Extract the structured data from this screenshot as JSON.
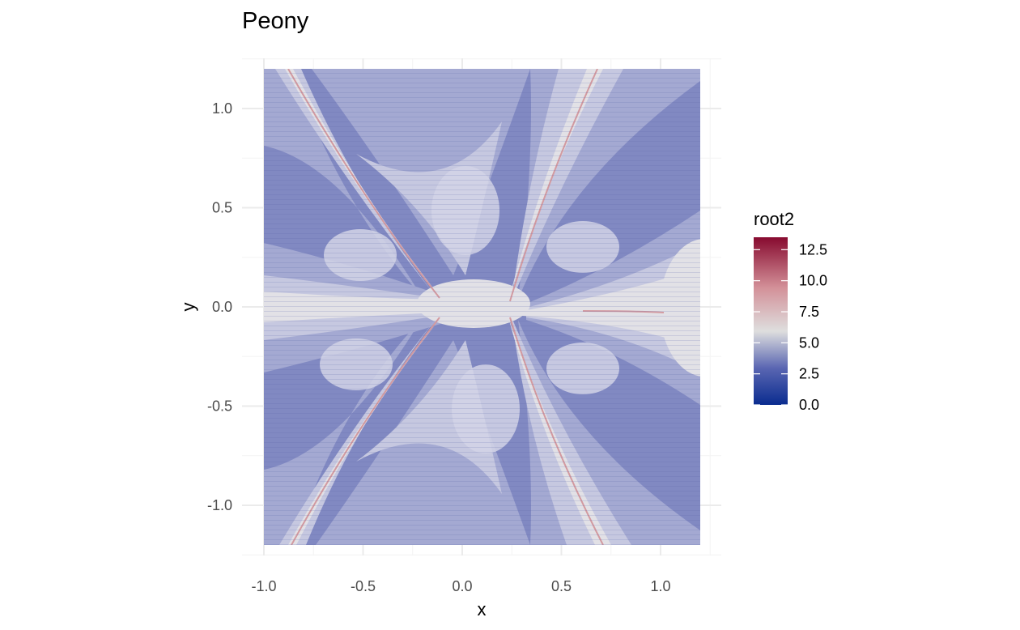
{
  "chart_data": {
    "type": "heatmap",
    "title": "Peony",
    "xlabel": "x",
    "ylabel": "y",
    "xlim": [
      -1.0,
      1.2
    ],
    "ylim": [
      -1.2,
      1.2
    ],
    "x_ticks": [
      "-1.0",
      "-0.5",
      "0.0",
      "0.5",
      "1.0"
    ],
    "x_tick_values": [
      -1.0,
      -0.5,
      0.0,
      0.5,
      1.0
    ],
    "y_ticks": [
      "1.0",
      "0.5",
      "0.0",
      "-0.5",
      "-1.0"
    ],
    "y_tick_values": [
      1.0,
      0.5,
      0.0,
      -0.5,
      -1.0
    ],
    "fill_variable": "root2",
    "fill_range": [
      0,
      13.5
    ],
    "legend_ticks": [
      "12.5",
      "10.0",
      "7.5",
      "5.0",
      "2.5",
      "0.0"
    ],
    "legend_tick_values": [
      12.5,
      10.0,
      7.5,
      5.0,
      2.5,
      0.0
    ],
    "legend_position": "right",
    "colorscale": {
      "low": "#053061",
      "low_mid": "#2d4fa8",
      "mid": "#e0dede",
      "high_mid": "#d6604d",
      "high": "#67001f"
    },
    "grid": true,
    "theme": "minimal"
  }
}
